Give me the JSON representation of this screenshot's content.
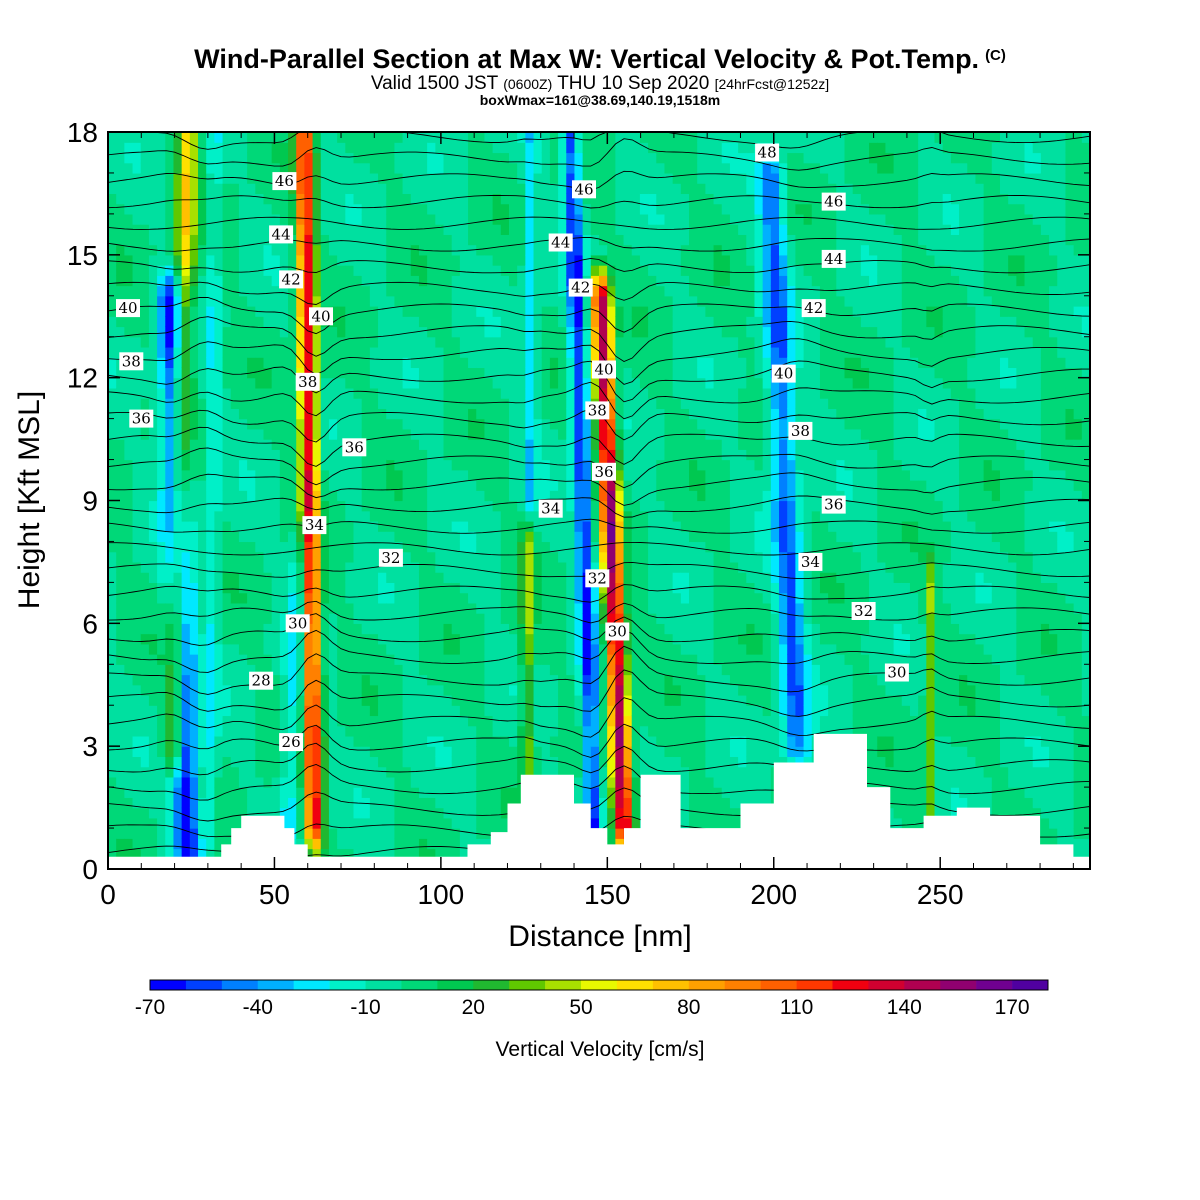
{
  "title": {
    "main": "Wind-Parallel Section at Max W: Vertical Velocity & Pot.Temp.",
    "copyright": "(C)",
    "valid_a": "Valid 1500 JST",
    "valid_b": "(0600Z)",
    "valid_c": "THU 10 Sep 2020",
    "valid_d": "[24hrFcst@1252z]",
    "box": "boxWmax=161@38.69,140.19,1518m"
  },
  "chart_data": {
    "type": "heatmap",
    "xlabel": "Distance [nm]",
    "ylabel": "Height [Kft MSL]",
    "xlim": [
      0,
      295
    ],
    "ylim": [
      0,
      18
    ],
    "x_ticks": [
      0,
      50,
      100,
      150,
      200,
      250
    ],
    "y_ticks": [
      0,
      3,
      6,
      9,
      12,
      15,
      18
    ],
    "background_value_cm_s": 0,
    "colorbar": {
      "title": "Vertical Velocity [cm/s]",
      "levels": [
        -70,
        -60,
        -50,
        -40,
        -30,
        -20,
        -10,
        0,
        10,
        20,
        30,
        40,
        50,
        60,
        70,
        80,
        90,
        100,
        110,
        120,
        130,
        140,
        150,
        160,
        170,
        180
      ],
      "tick_labels": [
        -70,
        -40,
        -10,
        20,
        50,
        80,
        110,
        140,
        170
      ],
      "colors": [
        "#0000ff",
        "#0040ff",
        "#0080ff",
        "#00b0ff",
        "#00e8ff",
        "#00f0c8",
        "#00e0a0",
        "#00d878",
        "#00c850",
        "#20b830",
        "#60c800",
        "#a8e000",
        "#e8f800",
        "#ffe000",
        "#ffc000",
        "#ffa000",
        "#ff8000",
        "#ff6000",
        "#ff3800",
        "#f00010",
        "#d00030",
        "#b00050",
        "#900070",
        "#700090",
        "#5000a0"
      ]
    },
    "vertical_velocity_features": [
      {
        "name": "updraft-a",
        "x": 20,
        "z_bottom": 3,
        "z_top": 18,
        "tilt": 4,
        "width": 3,
        "max": 65
      },
      {
        "name": "downdraft-a",
        "x": 24,
        "z_bottom": 0.5,
        "z_top": 14,
        "tilt": -5,
        "width": 4,
        "max": -70
      },
      {
        "name": "updraft-b",
        "x": 62,
        "z_bottom": 1,
        "z_top": 18,
        "tilt": -3,
        "width": 2.6,
        "max": 130
      },
      {
        "name": "downdraft-b",
        "x": 54,
        "z_bottom": 1,
        "z_top": 8,
        "tilt": 4,
        "width": 3,
        "max": -25
      },
      {
        "name": "downdraft-c",
        "x": 31,
        "z_bottom": 1,
        "z_top": 18,
        "tilt": 1,
        "width": 2,
        "max": -20
      },
      {
        "name": "downdraft-d",
        "x": 146,
        "z_bottom": 1,
        "z_top": 18,
        "tilt": -7,
        "width": 2.6,
        "max": -60
      },
      {
        "name": "updraft-c",
        "x": 155,
        "z_bottom": 1,
        "z_top": 14,
        "tilt": -7,
        "width": 2.8,
        "max": 150
      },
      {
        "name": "updraft-d",
        "x": 126,
        "z_bottom": 2.5,
        "z_top": 8,
        "tilt": 0,
        "width": 2,
        "max": 40
      },
      {
        "name": "downdraft-e",
        "x": 207,
        "z_bottom": 3,
        "z_top": 17,
        "tilt": -8,
        "width": 4,
        "max": -50
      },
      {
        "name": "downdraft-f",
        "x": 127,
        "z_bottom": 9,
        "z_top": 18,
        "tilt": 0,
        "width": 2,
        "max": -25
      },
      {
        "name": "updraft-e",
        "x": 247,
        "z_bottom": 1.5,
        "z_top": 7,
        "tilt": 0,
        "width": 1.5,
        "max": 40
      }
    ],
    "terrain_kft": [
      [
        0,
        0.3
      ],
      [
        30,
        0.3
      ],
      [
        34,
        0.6
      ],
      [
        37,
        1.0
      ],
      [
        40,
        1.3
      ],
      [
        50,
        1.3
      ],
      [
        53,
        1.0
      ],
      [
        56,
        0.6
      ],
      [
        60,
        0.3
      ],
      [
        100,
        0.3
      ],
      [
        108,
        0.6
      ],
      [
        115,
        0.9
      ],
      [
        120,
        1.6
      ],
      [
        124,
        2.3
      ],
      [
        133,
        2.3
      ],
      [
        140,
        1.6
      ],
      [
        145,
        1.0
      ],
      [
        150,
        0.6
      ],
      [
        155,
        1.0
      ],
      [
        160,
        2.3
      ],
      [
        168,
        2.3
      ],
      [
        172,
        1.0
      ],
      [
        180,
        1.0
      ],
      [
        190,
        1.6
      ],
      [
        200,
        2.6
      ],
      [
        212,
        3.3
      ],
      [
        220,
        3.3
      ],
      [
        228,
        2.0
      ],
      [
        235,
        1.0
      ],
      [
        245,
        1.3
      ],
      [
        255,
        1.5
      ],
      [
        265,
        1.3
      ],
      [
        280,
        0.6
      ],
      [
        290,
        0.3
      ],
      [
        295,
        0.3
      ]
    ],
    "theta_label_text": [
      "26",
      "28",
      "30",
      "32",
      "34",
      "36",
      "38",
      "40",
      "42",
      "44",
      "46",
      "48"
    ],
    "theta_labels": [
      {
        "text": "26",
        "x": 55,
        "z": 3.1
      },
      {
        "text": "28",
        "x": 46,
        "z": 4.6
      },
      {
        "text": "30",
        "x": 57,
        "z": 6.0
      },
      {
        "text": "30",
        "x": 153,
        "z": 5.8
      },
      {
        "text": "30",
        "x": 237,
        "z": 4.8
      },
      {
        "text": "32",
        "x": 85,
        "z": 7.6
      },
      {
        "text": "32",
        "x": 147,
        "z": 7.1
      },
      {
        "text": "32",
        "x": 227,
        "z": 6.3
      },
      {
        "text": "34",
        "x": 62,
        "z": 8.4
      },
      {
        "text": "34",
        "x": 133,
        "z": 8.8
      },
      {
        "text": "34",
        "x": 211,
        "z": 7.5
      },
      {
        "text": "36",
        "x": 10,
        "z": 11.0
      },
      {
        "text": "36",
        "x": 74,
        "z": 10.3
      },
      {
        "text": "36",
        "x": 149,
        "z": 9.7
      },
      {
        "text": "36",
        "x": 218,
        "z": 8.9
      },
      {
        "text": "38",
        "x": 7,
        "z": 12.4
      },
      {
        "text": "38",
        "x": 60,
        "z": 11.9
      },
      {
        "text": "38",
        "x": 147,
        "z": 11.2
      },
      {
        "text": "38",
        "x": 208,
        "z": 10.7
      },
      {
        "text": "40",
        "x": 6,
        "z": 13.7
      },
      {
        "text": "40",
        "x": 64,
        "z": 13.5
      },
      {
        "text": "40",
        "x": 149,
        "z": 12.2
      },
      {
        "text": "40",
        "x": 203,
        "z": 12.1
      },
      {
        "text": "42",
        "x": 55,
        "z": 14.4
      },
      {
        "text": "42",
        "x": 142,
        "z": 14.2
      },
      {
        "text": "42",
        "x": 212,
        "z": 13.7
      },
      {
        "text": "44",
        "x": 52,
        "z": 15.5
      },
      {
        "text": "44",
        "x": 136,
        "z": 15.3
      },
      {
        "text": "44",
        "x": 218,
        "z": 14.9
      },
      {
        "text": "46",
        "x": 53,
        "z": 16.8
      },
      {
        "text": "46",
        "x": 143,
        "z": 16.6
      },
      {
        "text": "46",
        "x": 218,
        "z": 16.3
      },
      {
        "text": "48",
        "x": 198,
        "z": 17.5
      }
    ],
    "grid": false
  }
}
